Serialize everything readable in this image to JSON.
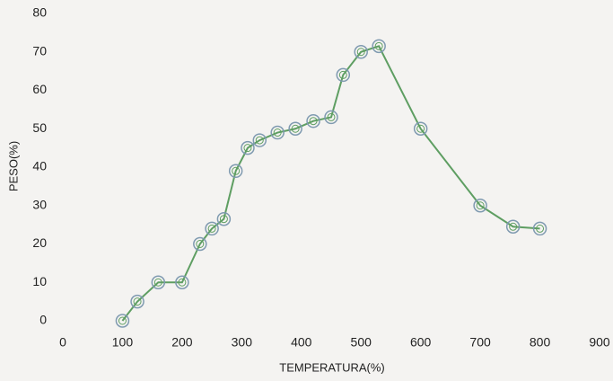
{
  "chart_data": {
    "type": "line",
    "x_label": "TEMPERATURA(%)",
    "y_label": "PESO(%)",
    "x": [
      100,
      125,
      160,
      200,
      230,
      250,
      270,
      290,
      310,
      330,
      360,
      390,
      420,
      450,
      470,
      500,
      530,
      600,
      700,
      755,
      800
    ],
    "series": [
      {
        "color": "#5e9e62",
        "values": [
          0,
          5,
          10,
          10,
          20,
          24,
          26.5,
          39,
          45,
          47,
          49,
          50,
          52,
          53,
          64,
          70,
          71.5,
          50,
          30,
          24.5,
          24
        ]
      }
    ],
    "xlim": [
      0,
      900
    ],
    "xticks": [
      0,
      100,
      200,
      300,
      400,
      500,
      600,
      700,
      800,
      900
    ],
    "ylim": [
      0,
      80
    ],
    "yticks": [
      0,
      10,
      20,
      30,
      40,
      50,
      60,
      70,
      80
    ],
    "grid": false,
    "marker_color": "#7f9ab0"
  }
}
